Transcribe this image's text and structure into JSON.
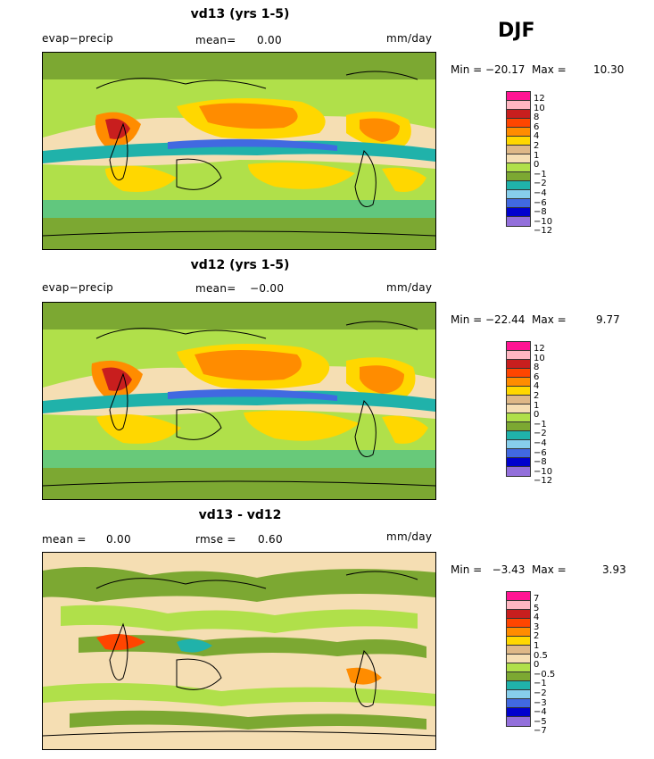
{
  "header": {
    "season": "DJF"
  },
  "colors": {
    "pos12": "#ff1493",
    "pos10": "#ffb6c1",
    "pos8": "#c81e1e",
    "pos6": "#ff4500",
    "pos4": "#ff8c00",
    "pos2": "#ffd700",
    "pos1": "#deb887",
    "zero": "#f5deb3",
    "neg1": "#b0e04a",
    "neg2": "#7ca832",
    "neg4": "#20b2aa",
    "neg6": "#87ceeb",
    "neg8": "#4169e1",
    "neg10": "#0000cd",
    "neg12": "#9370db"
  },
  "panels": [
    {
      "title": "vd13 (yrs 1-5)",
      "left_label": "evap−precip",
      "center_label": "mean=",
      "center_value": "0.00",
      "units": "mm/day",
      "min_label": "Min = −20.17  Max =",
      "max_value": "10.30",
      "colorbar_ticks": [
        "12",
        "10",
        "8",
        "6",
        "4",
        "2",
        "1",
        "0",
        "−1",
        "−2",
        "−4",
        "−6",
        "−8",
        "−10",
        "−12"
      ]
    },
    {
      "title": "vd12 (yrs 1-5)",
      "left_label": "evap−precip",
      "center_label": "mean=",
      "center_value": "−0.00",
      "units": "mm/day",
      "min_label": "Min = −22.44  Max =",
      "max_value": "9.77",
      "colorbar_ticks": [
        "12",
        "10",
        "8",
        "6",
        "4",
        "2",
        "1",
        "0",
        "−1",
        "−2",
        "−4",
        "−6",
        "−8",
        "−10",
        "−12"
      ]
    },
    {
      "title": "vd13 - vd12",
      "left_label": "mean =",
      "left_value": "0.00",
      "center_label": "rmse =",
      "center_value": "0.60",
      "units": "mm/day",
      "min_label": "Min =   −3.43  Max =",
      "max_value": "3.93",
      "colorbar_ticks": [
        "7",
        "5",
        "4",
        "3",
        "2",
        "1",
        "0.5",
        "0",
        "−0.5",
        "−1",
        "−2",
        "−3",
        "−4",
        "−5",
        "−7"
      ]
    }
  ]
}
